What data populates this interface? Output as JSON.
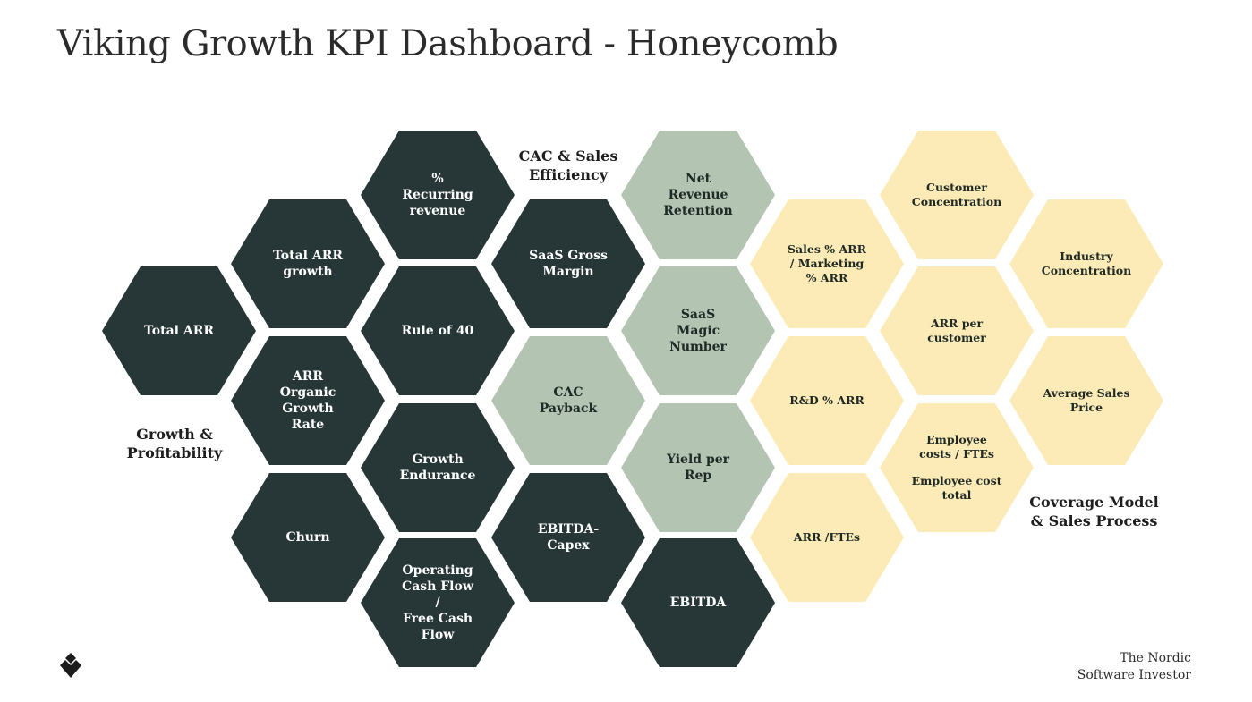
{
  "title": "Viking Growth KPI Dashboard - Honeycomb",
  "colors": {
    "dark": "#273737",
    "green": "#b3c4b3",
    "yellow": "#fcebb6"
  },
  "groups": {
    "growth": "Growth &\nProfitability",
    "cac": "CAC & Sales\nEfficiency",
    "coverage": "Coverage Model\n& Sales Process"
  },
  "cells": {
    "total_arr": "Total ARR",
    "total_arr_growth": "Total ARR\ngrowth",
    "arr_organic": "ARR Organic\nGrowth Rate",
    "churn": "Churn",
    "recurring_revenue": "% Recurring\nrevenue",
    "rule_of_40": "Rule of 40",
    "growth_endurance": "Growth\nEndurance",
    "ocf_fcf": "Operating\nCash Flow /\nFree Cash\nFlow",
    "saas_gross_margin": "SaaS Gross\nMargin",
    "cac_payback": "CAC Payback",
    "ebitda_capex": "EBITDA-\nCapex",
    "nrr": "Net Revenue\nRetention",
    "magic_number": "SaaS Magic\nNumber",
    "yield_per_rep": "Yield per Rep",
    "ebitda": "EBITDA",
    "sales_marketing": "Sales % ARR\n/ Marketing\n% ARR",
    "rd_arr": "R&D % ARR",
    "arr_ftes": "ARR /FTEs",
    "customer_concentration": "Customer\nConcentration",
    "arr_per_customer": "ARR per\ncustomer",
    "employee_costs": "Employee\ncosts / FTEs",
    "employee_cost_total": "Employee cost\ntotal",
    "industry_concentration": "Industry\nConcentration",
    "average_sales_price": "Average Sales\nPrice"
  },
  "footer": {
    "brand": "The Nordic\nSoftware Investor",
    "logo_icon": "diamond-logo-icon"
  }
}
